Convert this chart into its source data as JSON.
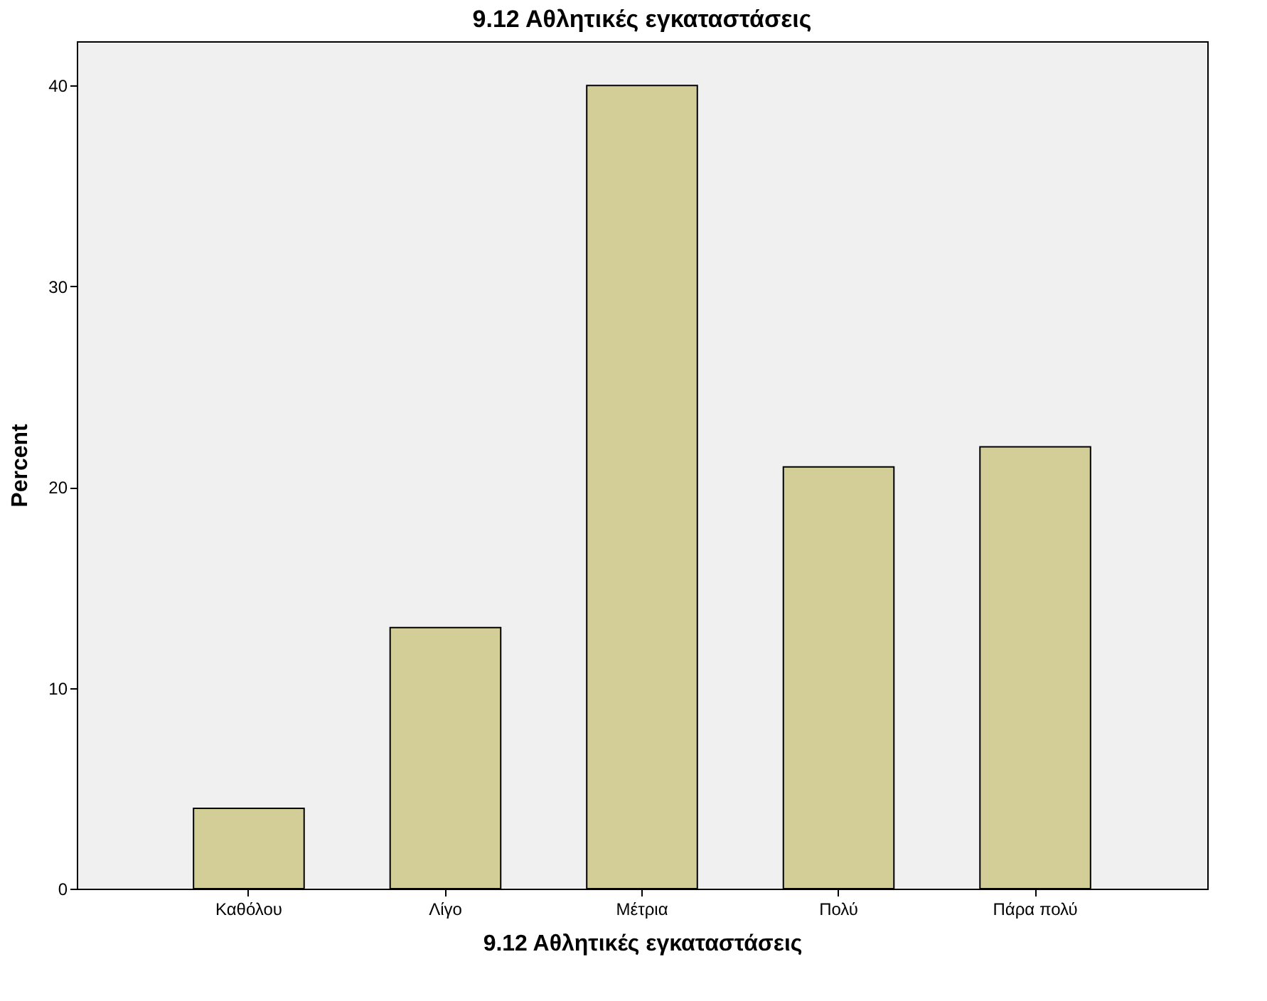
{
  "chart_data": {
    "type": "bar",
    "title": "9.12 Αθλητικές εγκαταστάσεις",
    "xlabel": "9.12 Αθλητικές εγκαταστάσεις",
    "ylabel": "Percent",
    "categories": [
      "Καθόλου",
      "Λίγο",
      "Μέτρια",
      "Πολύ",
      "Πάρα πολύ"
    ],
    "values": [
      4,
      13,
      40,
      21,
      22
    ],
    "color": "#d3ce97",
    "ylim": [
      0,
      42.2
    ],
    "yticks": [
      0,
      10,
      20,
      30,
      40
    ],
    "grid": false
  }
}
